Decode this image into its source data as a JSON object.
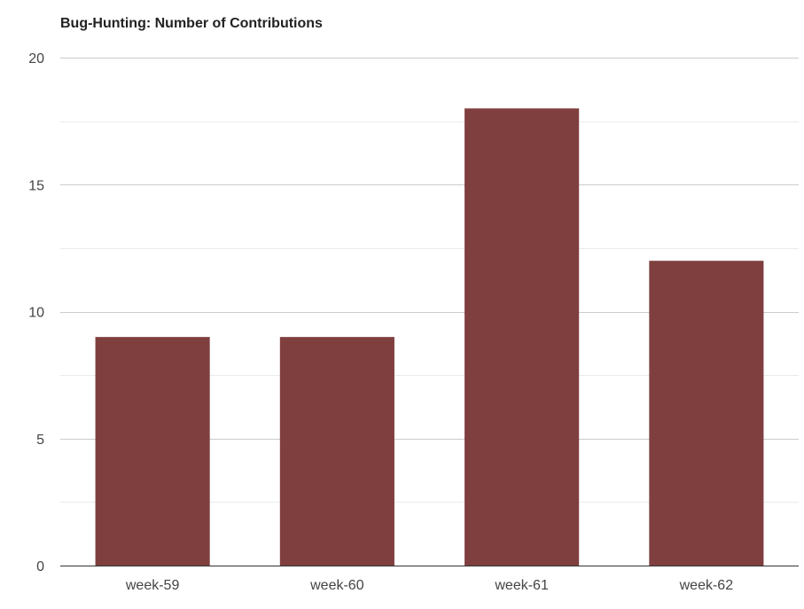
{
  "chart_data": {
    "type": "bar",
    "title": "Bug-Hunting: Number of Contributions",
    "xlabel": "",
    "ylabel": "",
    "categories": [
      "week-59",
      "week-60",
      "week-61",
      "week-62"
    ],
    "values": [
      9,
      9,
      18,
      12
    ],
    "ylim": [
      0,
      20
    ],
    "yticks": [
      "0",
      "5",
      "10",
      "15",
      "20"
    ],
    "grid": true,
    "legend": "none",
    "colors": {
      "bar": "#803f3f",
      "major_grid": "#cccccc",
      "minor_grid": "#ebebeb",
      "axis": "#333333",
      "title": "#222222",
      "tick_label": "#444444"
    }
  }
}
